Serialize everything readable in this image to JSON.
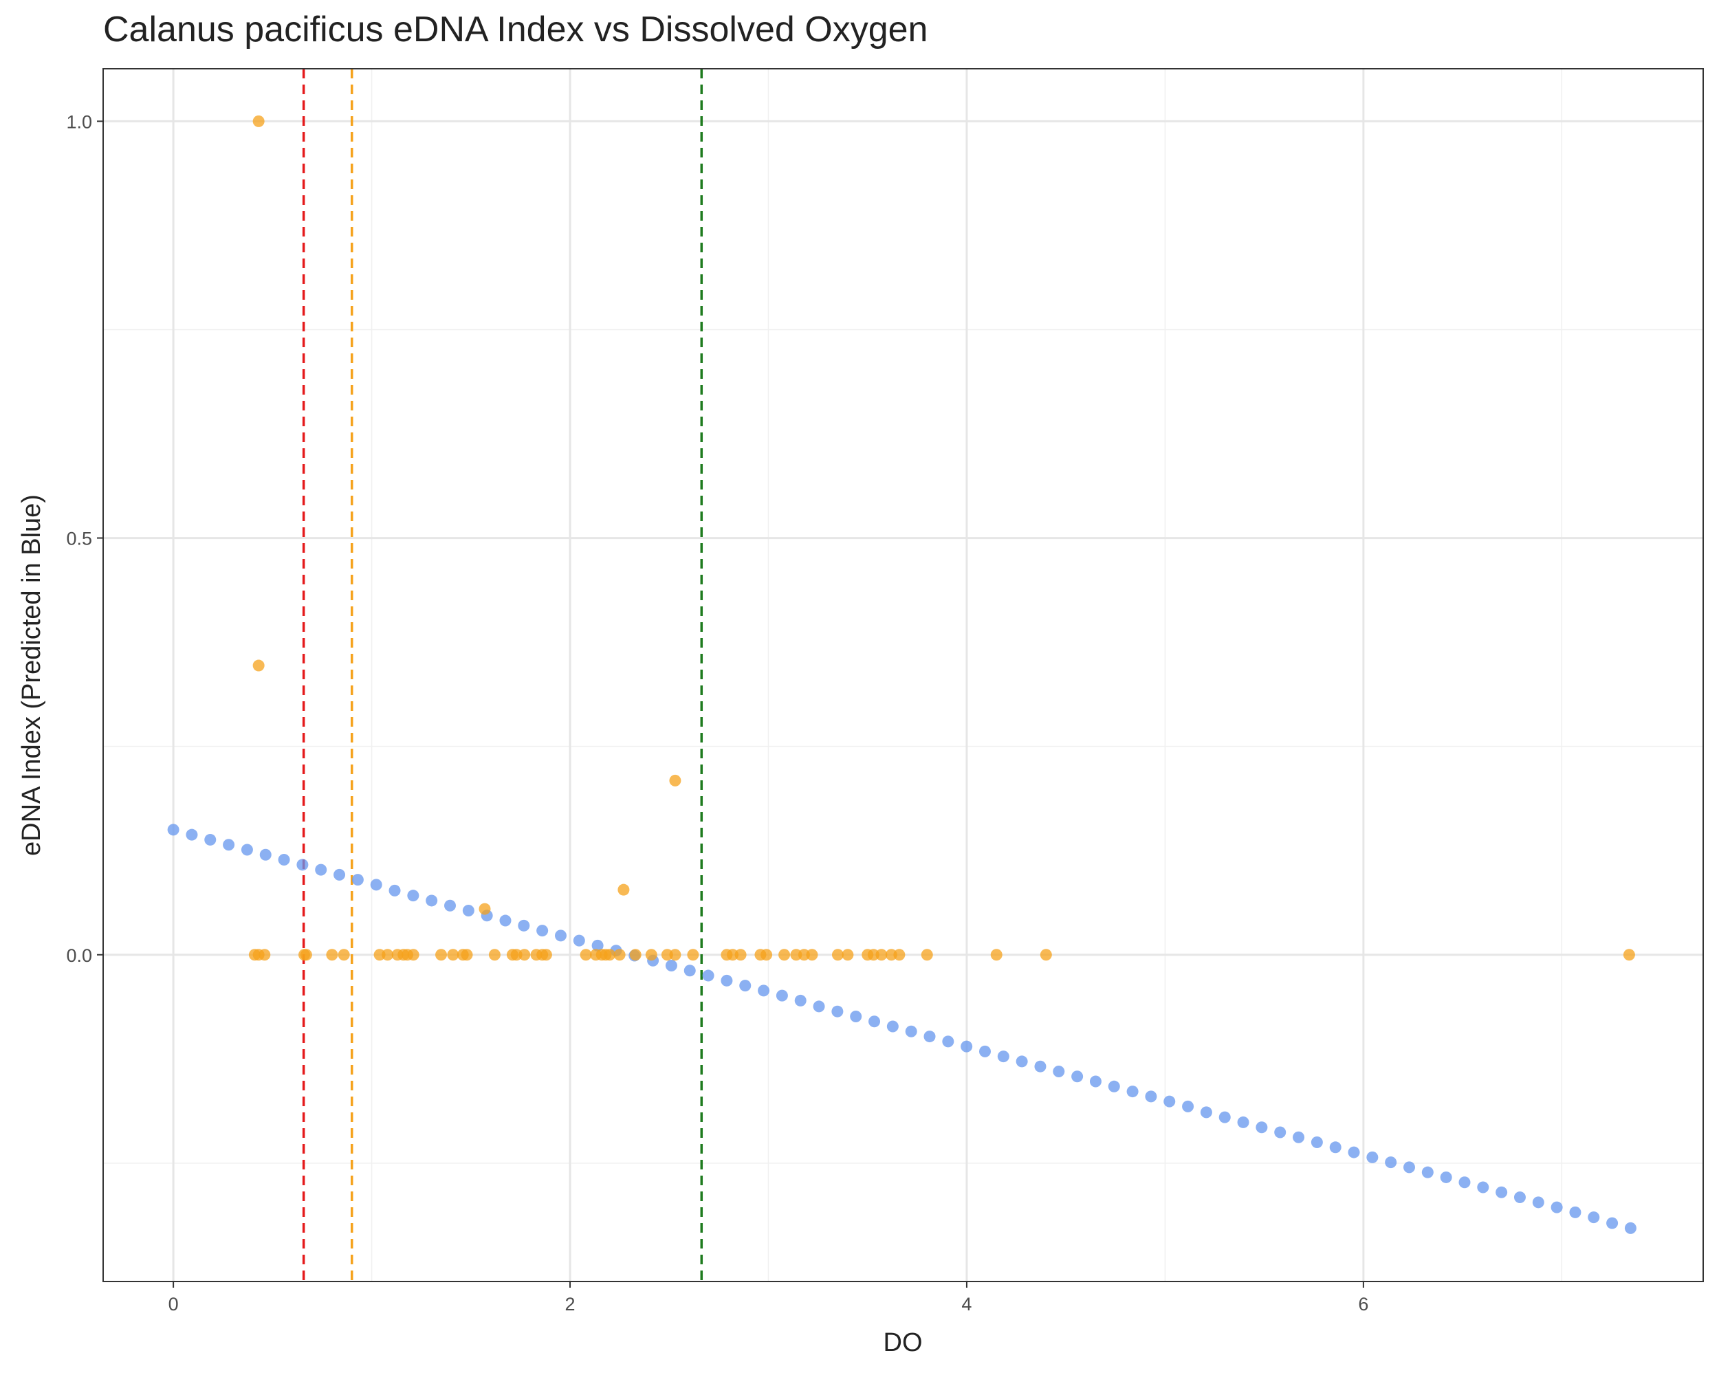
{
  "chart_data": {
    "type": "scatter",
    "title": "Calanus pacificus eDNA Index vs Dissolved Oxygen",
    "x_label": "DO",
    "y_label": "eDNA Index (Predicted in Blue)",
    "xlim": [
      -0.354,
      7.713
    ],
    "ylim": [
      -0.392,
      1.063
    ],
    "xticks": [
      0,
      2,
      4,
      6
    ],
    "yticks": [
      {
        "value": 0,
        "label": "0.0"
      },
      0.5,
      {
        "value": 1,
        "label": "1.0"
      }
    ],
    "x_minor_grid": [
      1,
      3,
      5,
      7
    ],
    "y_minor_grid": [
      -0.25,
      0.25,
      0.75
    ],
    "grid": true,
    "series": [
      {
        "color": "#6495ED",
        "x": [
          0,
          0.093,
          0.186,
          0.279,
          0.372,
          0.465,
          0.558,
          0.651,
          0.744,
          0.837,
          0.93,
          1.023,
          1.116,
          1.209,
          1.302,
          1.395,
          1.488,
          1.581,
          1.674,
          1.767,
          1.86,
          1.953,
          2.046,
          2.139,
          2.232,
          2.325,
          2.418,
          2.511,
          2.604,
          2.697,
          2.79,
          2.883,
          2.976,
          3.069,
          3.162,
          3.255,
          3.348,
          3.441,
          3.534,
          3.627,
          3.72,
          3.813,
          3.906,
          3.999,
          4.092,
          4.185,
          4.278,
          4.371,
          4.464,
          4.557,
          4.65,
          4.743,
          4.836,
          4.929,
          5.022,
          5.115,
          5.208,
          5.301,
          5.394,
          5.487,
          5.58,
          5.673,
          5.766,
          5.859,
          5.952,
          6.045,
          6.138,
          6.231,
          6.324,
          6.417,
          6.51,
          6.603,
          6.696,
          6.789,
          6.882,
          6.975,
          7.068,
          7.161,
          7.254,
          7.347
        ],
        "values": [
          0.15,
          0.144,
          0.138,
          0.132,
          0.126,
          0.12,
          0.114,
          0.108,
          0.102,
          0.096,
          0.09,
          0.084,
          0.077,
          0.071,
          0.065,
          0.059,
          0.053,
          0.047,
          0.041,
          0.035,
          0.029,
          0.023,
          0.017,
          0.011,
          0.005,
          -0.001,
          -0.007,
          -0.013,
          -0.019,
          -0.025,
          -0.031,
          -0.037,
          -0.043,
          -0.049,
          -0.055,
          -0.062,
          -0.068,
          -0.074,
          -0.08,
          -0.086,
          -0.092,
          -0.098,
          -0.104,
          -0.11,
          -0.116,
          -0.122,
          -0.128,
          -0.134,
          -0.14,
          -0.146,
          -0.152,
          -0.158,
          -0.164,
          -0.17,
          -0.176,
          -0.182,
          -0.189,
          -0.195,
          -0.201,
          -0.207,
          -0.213,
          -0.219,
          -0.225,
          -0.231,
          -0.237,
          -0.243,
          -0.249,
          -0.255,
          -0.261,
          -0.267,
          -0.273,
          -0.279,
          -0.285,
          -0.291,
          -0.297,
          -0.303,
          -0.309,
          -0.315,
          -0.322,
          -0.328
        ]
      },
      {
        "color": "#F5A21B",
        "x": [
          0.43,
          0.43,
          2.53,
          2.27,
          1.57,
          0.41,
          0.43,
          0.46,
          0.66,
          0.67,
          0.8,
          0.86,
          1.04,
          1.08,
          1.13,
          1.16,
          1.18,
          1.21,
          1.35,
          1.41,
          1.46,
          1.48,
          1.62,
          1.71,
          1.73,
          1.77,
          1.83,
          1.86,
          1.88,
          2.08,
          2.13,
          2.16,
          2.18,
          2.2,
          2.25,
          2.33,
          2.41,
          2.49,
          2.53,
          2.62,
          2.79,
          2.82,
          2.86,
          2.96,
          2.99,
          3.08,
          3.14,
          3.18,
          3.22,
          3.35,
          3.4,
          3.5,
          3.53,
          3.57,
          3.62,
          3.66,
          3.8,
          4.15,
          4.4,
          7.34
        ],
        "values": [
          1.0,
          0.347,
          0.209,
          0.078,
          0.055,
          0,
          0,
          0,
          0,
          0,
          0,
          0,
          0,
          0,
          0,
          0,
          0,
          0,
          0,
          0,
          0,
          0,
          0,
          0,
          0,
          0,
          0,
          0,
          0,
          0,
          0,
          0,
          0,
          0,
          0,
          0,
          0,
          0,
          0,
          0,
          0,
          0,
          0,
          0,
          0,
          0,
          0,
          0,
          0,
          0,
          0,
          0,
          0,
          0,
          0,
          0,
          0,
          0,
          0,
          0
        ]
      }
    ],
    "vlines": [
      {
        "x": 0.657,
        "color": "#E41A1C"
      },
      {
        "x": 0.9,
        "color": "#F5A21B"
      },
      {
        "x": 2.663,
        "color": "#1E7B1E"
      }
    ]
  }
}
